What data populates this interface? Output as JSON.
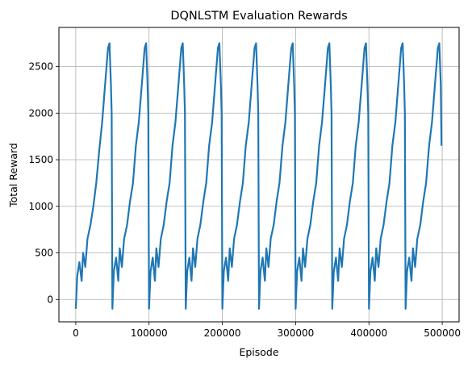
{
  "chart_data": {
    "type": "line",
    "title": "DQNLSTM Evaluation Rewards",
    "xlabel": "Episode",
    "ylabel": "Total Reward",
    "xlim": [
      -23000,
      523000
    ],
    "ylim": [
      -240,
      2920
    ],
    "xticks": [
      0,
      100000,
      200000,
      300000,
      400000,
      500000
    ],
    "xtick_labels": [
      "0",
      "100000",
      "200000",
      "300000",
      "400000",
      "500000"
    ],
    "yticks": [
      0,
      500,
      1000,
      1500,
      2000,
      2500
    ],
    "ytick_labels": [
      "0",
      "500",
      "1000",
      "1500",
      "2000",
      "2500"
    ],
    "grid": true,
    "line_color": "#1f77b4",
    "series": [
      {
        "name": "",
        "description_of_pattern": "repeating sawtooth, period ~50000 episodes",
        "x": [
          0,
          2000,
          5000,
          8000,
          10000,
          13000,
          16000,
          20000,
          24000,
          28000,
          32000,
          36000,
          40000,
          44000,
          46000,
          48000,
          49000,
          50000,
          52000,
          55000,
          58000,
          60000,
          63000,
          66000,
          70000,
          74000,
          78000,
          82000,
          86000,
          90000,
          94000,
          96000,
          98000,
          99000,
          100000,
          102000,
          105000,
          108000,
          110000,
          113000,
          116000,
          120000,
          124000,
          128000,
          132000,
          136000,
          140000,
          144000,
          146000,
          148000,
          149000,
          150000,
          152000,
          155000,
          158000,
          160000,
          163000,
          166000,
          170000,
          174000,
          178000,
          182000,
          186000,
          190000,
          194000,
          196000,
          198000,
          199000,
          200000,
          202000,
          205000,
          208000,
          210000,
          213000,
          216000,
          220000,
          224000,
          228000,
          232000,
          236000,
          240000,
          244000,
          246000,
          248000,
          249000,
          250000,
          252000,
          255000,
          258000,
          260000,
          263000,
          266000,
          270000,
          274000,
          278000,
          282000,
          286000,
          290000,
          294000,
          296000,
          298000,
          299000,
          300000,
          302000,
          305000,
          308000,
          310000,
          313000,
          316000,
          320000,
          324000,
          328000,
          332000,
          336000,
          340000,
          344000,
          346000,
          348000,
          349000,
          350000,
          352000,
          355000,
          358000,
          360000,
          363000,
          366000,
          370000,
          374000,
          378000,
          382000,
          386000,
          390000,
          394000,
          396000,
          398000,
          399000,
          400000,
          402000,
          405000,
          408000,
          410000,
          413000,
          416000,
          420000,
          424000,
          428000,
          432000,
          436000,
          440000,
          444000,
          446000,
          448000,
          449000,
          450000,
          452000,
          455000,
          458000,
          460000,
          463000,
          466000,
          470000,
          474000,
          478000,
          482000,
          486000,
          490000,
          494000,
          496000,
          498000,
          499000
        ],
        "y": [
          -100,
          250,
          400,
          200,
          500,
          350,
          650,
          800,
          1000,
          1250,
          1600,
          1900,
          2300,
          2700,
          2750,
          2300,
          2000,
          -100,
          300,
          450,
          200,
          550,
          350,
          650,
          800,
          1050,
          1250,
          1650,
          1900,
          2300,
          2700,
          2750,
          2300,
          2000,
          -100,
          300,
          450,
          200,
          550,
          350,
          650,
          800,
          1050,
          1250,
          1650,
          1900,
          2300,
          2700,
          2750,
          2300,
          2000,
          -100,
          300,
          450,
          200,
          550,
          350,
          650,
          800,
          1050,
          1250,
          1650,
          1900,
          2300,
          2700,
          2750,
          2300,
          2000,
          -100,
          300,
          450,
          200,
          550,
          350,
          650,
          800,
          1050,
          1250,
          1650,
          1900,
          2300,
          2700,
          2750,
          2300,
          2000,
          -100,
          300,
          450,
          200,
          550,
          350,
          650,
          800,
          1050,
          1250,
          1650,
          1900,
          2300,
          2700,
          2750,
          2300,
          2000,
          -100,
          300,
          450,
          200,
          550,
          350,
          650,
          800,
          1050,
          1250,
          1650,
          1900,
          2300,
          2700,
          2750,
          2300,
          2000,
          -100,
          300,
          450,
          200,
          550,
          350,
          650,
          800,
          1050,
          1250,
          1650,
          1900,
          2300,
          2700,
          2750,
          2300,
          2000,
          -100,
          300,
          450,
          200,
          550,
          350,
          650,
          800,
          1050,
          1250,
          1650,
          1900,
          2300,
          2700,
          2750,
          2300,
          2000,
          -100,
          300,
          450,
          200,
          550,
          350,
          650,
          800,
          1050,
          1250,
          1650,
          1900,
          2300,
          2700,
          2750,
          2300,
          1650
        ]
      }
    ]
  }
}
